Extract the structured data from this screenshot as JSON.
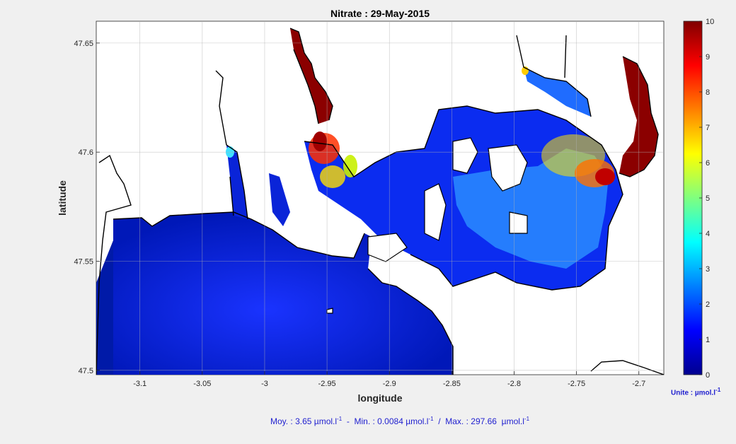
{
  "chart_data": {
    "type": "heatmap",
    "title": "Nitrate : 29-May-2015",
    "xlabel": "longitude",
    "ylabel": "latitude",
    "xlim": [
      -3.135,
      -2.68
    ],
    "ylim": [
      47.498,
      47.66
    ],
    "x_ticks": [
      -3.1,
      -3.05,
      -3.0,
      -2.95,
      -2.9,
      -2.85,
      -2.8,
      -2.75,
      -2.7
    ],
    "x_tick_labels": [
      "-3.1",
      "-3.05",
      "-3",
      "-2.95",
      "-2.9",
      "-2.85",
      "-2.8",
      "-2.75",
      "-2.7"
    ],
    "y_ticks": [
      47.5,
      47.55,
      47.6,
      47.65
    ],
    "y_tick_labels": [
      "47.5",
      "47.55",
      "47.6",
      "47.65"
    ],
    "grid": true,
    "colorbar": {
      "min": 0,
      "max": 10,
      "ticks": [
        "0",
        "1",
        "2",
        "3",
        "4",
        "5",
        "6",
        "7",
        "8",
        "9",
        "10"
      ],
      "colormap": "jet",
      "unit_label": "Unite : µmol.l",
      "unit_exponent": "-1"
    },
    "hotspots": [
      {
        "lon": -2.955,
        "lat": 47.605,
        "value": 10
      },
      {
        "lon": -2.948,
        "lat": 47.59,
        "value": 7
      },
      {
        "lon": -2.935,
        "lat": 47.595,
        "value": 6
      },
      {
        "lon": -2.74,
        "lat": 47.587,
        "value": 9
      },
      {
        "lon": -2.77,
        "lat": 47.598,
        "value": 5
      },
      {
        "lon": -2.81,
        "lat": 47.575,
        "value": 3
      },
      {
        "lon": -3.025,
        "lat": 47.598,
        "value": 4
      },
      {
        "lon": -2.72,
        "lat": 47.62,
        "value": 10
      },
      {
        "lon": -2.96,
        "lat": 47.645,
        "value": 10
      }
    ],
    "stats": {
      "moy_label": "Moy. : ",
      "moy_value": "3.65",
      "min_label": "Min. : ",
      "min_value": "0.0084",
      "max_label": "Max. : ",
      "max_value": "297.66",
      "unit": "µmol.l",
      "unit_exponent": "-1"
    }
  },
  "colors": {
    "background": "#f0f0f0",
    "land": "#ffffff",
    "coast": "#000000",
    "label_blue": "#1f1fcf"
  }
}
